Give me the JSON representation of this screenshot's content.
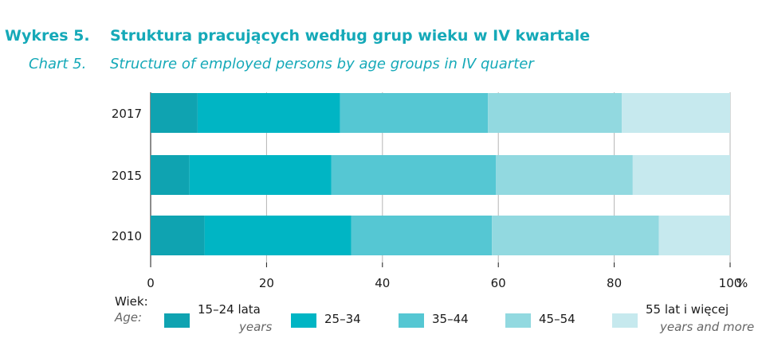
{
  "title": {
    "pl_label": "Wykres 5.",
    "pl_text": "Struktura pracujących według grup wieku w IV kwartale",
    "en_label": "Chart 5.",
    "en_text": "Structure of employed persons by age groups in IV quarter"
  },
  "legend": {
    "title_pl": "Wiek:",
    "title_en": "Age:",
    "items": [
      {
        "label": "15–24 lata",
        "sub": "years"
      },
      {
        "label": "25–34",
        "sub": ""
      },
      {
        "label": "35–44",
        "sub": ""
      },
      {
        "label": "45–54",
        "sub": ""
      },
      {
        "label": "55 lat i więcej",
        "sub": "years and more"
      }
    ]
  },
  "chart_data": {
    "type": "bar",
    "orientation": "horizontal",
    "stacked": true,
    "categories": [
      "2017",
      "2015",
      "2010"
    ],
    "series": [
      {
        "name": "15–24 lata",
        "color": "#0fa3b1",
        "values": [
          8.1,
          6.7,
          9.3
        ]
      },
      {
        "name": "25–34",
        "color": "#00b5c4",
        "values": [
          24.6,
          24.5,
          25.3
        ]
      },
      {
        "name": "35–44",
        "color": "#55c7d3",
        "values": [
          25.5,
          28.4,
          24.3
        ]
      },
      {
        "name": "45–54",
        "color": "#92d9e0",
        "values": [
          23.1,
          23.6,
          28.8
        ]
      },
      {
        "name": "55 lat i więcej",
        "color": "#c6e9ee",
        "values": [
          18.7,
          16.8,
          12.3
        ]
      }
    ],
    "xlim": [
      0,
      100
    ],
    "xticks": [
      "0",
      "20",
      "40",
      "60",
      "80",
      "100"
    ],
    "x_unit": "%",
    "grid": true
  }
}
